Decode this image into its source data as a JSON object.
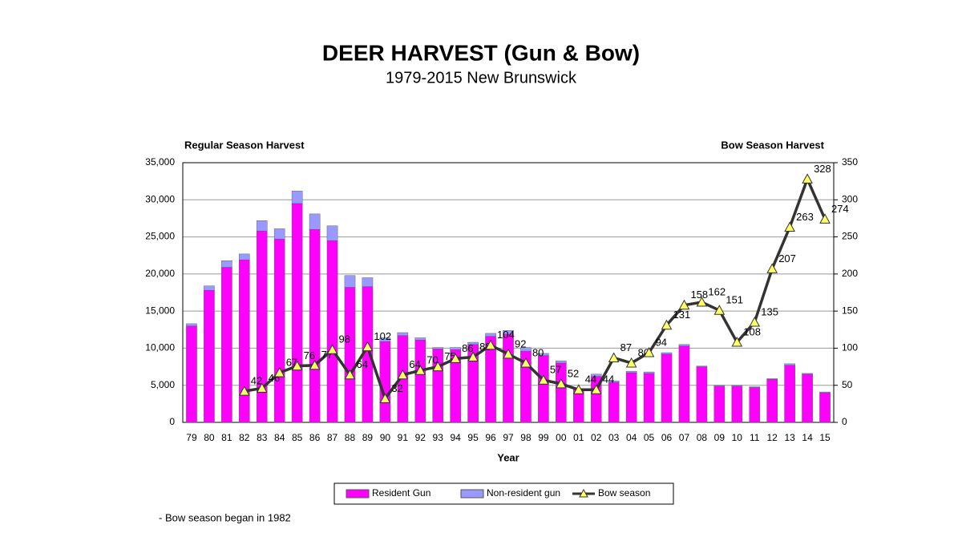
{
  "chart_data": {
    "type": "bar-line",
    "title": "DEER HARVEST (Gun & Bow)",
    "subtitle": "1979-2015 New Brunswick",
    "y_label": "Regular Season Harvest",
    "y2_label": "Bow Season Harvest",
    "x_label": "Year",
    "note": "- Bow season began in 1982",
    "categories": [
      "79",
      "80",
      "81",
      "82",
      "83",
      "84",
      "85",
      "86",
      "87",
      "88",
      "89",
      "90",
      "91",
      "92",
      "93",
      "94",
      "95",
      "96",
      "97",
      "98",
      "99",
      "00",
      "01",
      "02",
      "03",
      "04",
      "05",
      "06",
      "07",
      "08",
      "09",
      "10",
      "11",
      "12",
      "13",
      "14",
      "15"
    ],
    "series": [
      {
        "name": "Resident Gun",
        "color": "#ff00ff",
        "kind": "bar",
        "values": [
          13000,
          17800,
          20900,
          21900,
          25800,
          24700,
          29500,
          26000,
          24500,
          18200,
          18300,
          10900,
          11700,
          11100,
          9900,
          9800,
          10500,
          11600,
          11900,
          9600,
          9000,
          8000,
          4400,
          6200,
          5400,
          6700,
          6600,
          9200,
          10300,
          7500,
          4900,
          4900,
          4700,
          5800,
          7700,
          6500,
          4000
        ]
      },
      {
        "name": "Non-resident gun",
        "color": "#9999ff",
        "kind": "bar",
        "values": [
          300,
          600,
          900,
          800,
          1400,
          1400,
          1700,
          2100,
          2000,
          1600,
          1200,
          500,
          400,
          300,
          200,
          300,
          300,
          400,
          500,
          500,
          300,
          300,
          100,
          300,
          200,
          200,
          200,
          200,
          200,
          100,
          100,
          100,
          100,
          100,
          200,
          100,
          100
        ]
      },
      {
        "name": "Bow season",
        "color": "#333333",
        "marker_color": "#ffff66",
        "kind": "line",
        "axis": "y2",
        "values": [
          null,
          null,
          null,
          42,
          46,
          67,
          76,
          77,
          98,
          64,
          102,
          32,
          64,
          70,
          75,
          86,
          88,
          104,
          92,
          80,
          57,
          52,
          44,
          44,
          87,
          80,
          94,
          131,
          158,
          162,
          151,
          108,
          135,
          207,
          263,
          328,
          274
        ]
      }
    ],
    "ylim": [
      0,
      35000
    ],
    "yticks": [
      0,
      {
        "value": 5000,
        "label": "5,000"
      },
      {
        "value": 10000,
        "label": "10,000"
      },
      {
        "value": 15000,
        "label": "15,000"
      },
      {
        "value": 20000,
        "label": "20,000"
      },
      {
        "value": 25000,
        "label": "25,000"
      },
      {
        "value": 30000,
        "label": "30,000"
      },
      {
        "value": 35000,
        "label": "35,000"
      }
    ],
    "y2lim": [
      0,
      350
    ],
    "y2ticks": [
      0,
      50,
      100,
      150,
      200,
      250,
      300,
      350
    ],
    "grid": true,
    "legend": "bottom"
  }
}
